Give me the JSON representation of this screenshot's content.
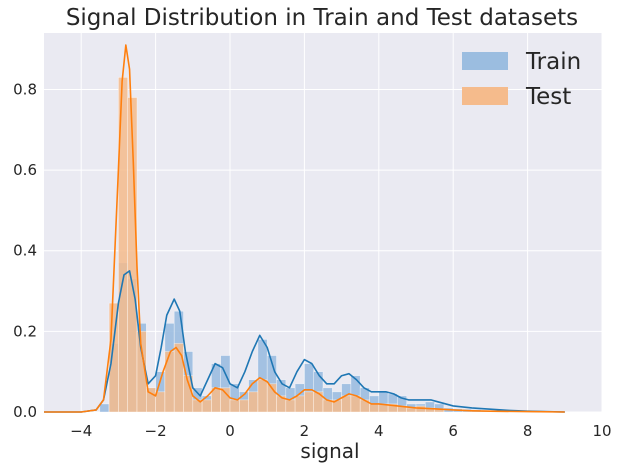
{
  "chart_data": {
    "type": "histogram-kde",
    "title": "Signal Distribution in Train and Test datasets",
    "xlabel": "signal",
    "ylabel": "",
    "xlim": [
      -5,
      10
    ],
    "ylim": [
      0,
      0.94
    ],
    "xticks": [
      -4,
      -2,
      0,
      2,
      4,
      6,
      8,
      10
    ],
    "xtick_labels": [
      "−4",
      "−2",
      "0",
      "2",
      "4",
      "6",
      "8",
      "10"
    ],
    "yticks": [
      0.0,
      0.2,
      0.4,
      0.6,
      0.8
    ],
    "ytick_labels": [
      "0.0",
      "0.2",
      "0.4",
      "0.6",
      "0.8"
    ],
    "grid": true,
    "background": "#eaeaf2",
    "legend_position": "top-right",
    "bin_width": 0.25,
    "series": [
      {
        "name": "Train",
        "bar_color": "#9bbde0",
        "bar_alpha": 0.9,
        "line_color": "#1f77b4",
        "bins": [
          {
            "start": -3.5,
            "value": 0.02
          },
          {
            "start": -3.25,
            "value": 0.17
          },
          {
            "start": -3.0,
            "value": 0.37
          },
          {
            "start": -2.75,
            "value": 0.33
          },
          {
            "start": -2.5,
            "value": 0.22
          },
          {
            "start": -2.25,
            "value": 0.06
          },
          {
            "start": -2.0,
            "value": 0.1
          },
          {
            "start": -1.75,
            "value": 0.22
          },
          {
            "start": -1.5,
            "value": 0.25
          },
          {
            "start": -1.25,
            "value": 0.15
          },
          {
            "start": -1.0,
            "value": 0.06
          },
          {
            "start": -0.75,
            "value": 0.04
          },
          {
            "start": -0.5,
            "value": 0.12
          },
          {
            "start": -0.25,
            "value": 0.14
          },
          {
            "start": 0.0,
            "value": 0.07
          },
          {
            "start": 0.25,
            "value": 0.05
          },
          {
            "start": 0.5,
            "value": 0.08
          },
          {
            "start": 0.75,
            "value": 0.18
          },
          {
            "start": 1.0,
            "value": 0.14
          },
          {
            "start": 1.25,
            "value": 0.08
          },
          {
            "start": 1.5,
            "value": 0.06
          },
          {
            "start": 1.75,
            "value": 0.07
          },
          {
            "start": 2.0,
            "value": 0.12
          },
          {
            "start": 2.25,
            "value": 0.1
          },
          {
            "start": 2.5,
            "value": 0.06
          },
          {
            "start": 2.75,
            "value": 0.05
          },
          {
            "start": 3.0,
            "value": 0.07
          },
          {
            "start": 3.25,
            "value": 0.09
          },
          {
            "start": 3.5,
            "value": 0.06
          },
          {
            "start": 3.75,
            "value": 0.04
          },
          {
            "start": 4.0,
            "value": 0.05
          },
          {
            "start": 4.25,
            "value": 0.045
          },
          {
            "start": 4.5,
            "value": 0.04
          },
          {
            "start": 4.75,
            "value": 0.02
          },
          {
            "start": 5.0,
            "value": 0.02
          },
          {
            "start": 5.25,
            "value": 0.025
          },
          {
            "start": 5.5,
            "value": 0.02
          },
          {
            "start": 5.75,
            "value": 0.01
          },
          {
            "start": 6.0,
            "value": 0.008
          },
          {
            "start": 6.25,
            "value": 0.007
          },
          {
            "start": 6.5,
            "value": 0.006
          },
          {
            "start": 6.75,
            "value": 0.004
          },
          {
            "start": 7.0,
            "value": 0.003
          },
          {
            "start": 7.25,
            "value": 0.002
          }
        ],
        "kde": {
          "x": [
            -5,
            -4,
            -3.6,
            -3.4,
            -3.2,
            -3.0,
            -2.85,
            -2.7,
            -2.55,
            -2.4,
            -2.2,
            -2.0,
            -1.85,
            -1.7,
            -1.5,
            -1.35,
            -1.2,
            -1.0,
            -0.8,
            -0.6,
            -0.4,
            -0.2,
            0.0,
            0.2,
            0.4,
            0.6,
            0.8,
            1.0,
            1.2,
            1.4,
            1.6,
            1.8,
            2.0,
            2.2,
            2.4,
            2.6,
            2.8,
            3.0,
            3.2,
            3.4,
            3.6,
            3.8,
            4.0,
            4.2,
            4.4,
            4.6,
            4.8,
            5.0,
            5.2,
            5.4,
            5.6,
            5.8,
            6.0,
            6.5,
            7.0,
            7.5,
            8.0,
            9.0
          ],
          "y": [
            0,
            0,
            0.005,
            0.03,
            0.12,
            0.27,
            0.34,
            0.35,
            0.28,
            0.16,
            0.07,
            0.09,
            0.16,
            0.24,
            0.28,
            0.25,
            0.15,
            0.06,
            0.04,
            0.08,
            0.12,
            0.11,
            0.07,
            0.06,
            0.1,
            0.15,
            0.19,
            0.16,
            0.1,
            0.07,
            0.06,
            0.1,
            0.13,
            0.12,
            0.09,
            0.07,
            0.07,
            0.09,
            0.095,
            0.08,
            0.06,
            0.05,
            0.05,
            0.05,
            0.045,
            0.035,
            0.03,
            0.03,
            0.03,
            0.03,
            0.025,
            0.02,
            0.015,
            0.01,
            0.007,
            0.004,
            0.002,
            0
          ]
        }
      },
      {
        "name": "Test",
        "bar_color": "#f5bb8c",
        "bar_alpha": 0.85,
        "line_color": "#ff7f0e",
        "bins": [
          {
            "start": -3.25,
            "value": 0.27
          },
          {
            "start": -3.0,
            "value": 0.83
          },
          {
            "start": -2.75,
            "value": 0.78
          },
          {
            "start": -2.5,
            "value": 0.2
          },
          {
            "start": -2.25,
            "value": 0.06
          },
          {
            "start": -2.0,
            "value": 0.05
          },
          {
            "start": -1.75,
            "value": 0.15
          },
          {
            "start": -1.5,
            "value": 0.17
          },
          {
            "start": -1.25,
            "value": 0.09
          },
          {
            "start": -1.0,
            "value": 0.03
          },
          {
            "start": -0.75,
            "value": 0.03
          },
          {
            "start": -0.5,
            "value": 0.06
          },
          {
            "start": -0.25,
            "value": 0.06
          },
          {
            "start": 0.0,
            "value": 0.03
          },
          {
            "start": 0.25,
            "value": 0.03
          },
          {
            "start": 0.5,
            "value": 0.05
          },
          {
            "start": 0.75,
            "value": 0.08
          },
          {
            "start": 1.0,
            "value": 0.07
          },
          {
            "start": 1.25,
            "value": 0.04
          },
          {
            "start": 1.5,
            "value": 0.03
          },
          {
            "start": 1.75,
            "value": 0.04
          },
          {
            "start": 2.0,
            "value": 0.05
          },
          {
            "start": 2.25,
            "value": 0.05
          },
          {
            "start": 2.5,
            "value": 0.03
          },
          {
            "start": 2.75,
            "value": 0.03
          },
          {
            "start": 3.0,
            "value": 0.04
          },
          {
            "start": 3.25,
            "value": 0.04
          },
          {
            "start": 3.5,
            "value": 0.03
          },
          {
            "start": 3.75,
            "value": 0.02
          },
          {
            "start": 4.0,
            "value": 0.02
          },
          {
            "start": 4.25,
            "value": 0.02
          },
          {
            "start": 4.5,
            "value": 0.015
          },
          {
            "start": 4.75,
            "value": 0.01
          },
          {
            "start": 5.0,
            "value": 0.015
          },
          {
            "start": 5.25,
            "value": 0.01
          },
          {
            "start": 5.5,
            "value": 0.008
          }
        ],
        "kde": {
          "x": [
            -5,
            -4,
            -3.6,
            -3.4,
            -3.2,
            -3.0,
            -2.9,
            -2.8,
            -2.7,
            -2.6,
            -2.5,
            -2.4,
            -2.2,
            -2.0,
            -1.8,
            -1.6,
            -1.45,
            -1.3,
            -1.15,
            -1.0,
            -0.8,
            -0.6,
            -0.4,
            -0.2,
            0.0,
            0.2,
            0.4,
            0.6,
            0.8,
            1.0,
            1.2,
            1.4,
            1.6,
            1.8,
            2.0,
            2.2,
            2.4,
            2.6,
            2.8,
            3.0,
            3.2,
            3.4,
            3.6,
            3.8,
            4.0,
            4.5,
            5.0,
            5.5,
            6.0,
            6.5,
            7.0,
            8.0,
            9.0
          ],
          "y": [
            0,
            0,
            0.005,
            0.03,
            0.18,
            0.6,
            0.82,
            0.91,
            0.85,
            0.62,
            0.36,
            0.17,
            0.05,
            0.04,
            0.1,
            0.15,
            0.16,
            0.14,
            0.08,
            0.04,
            0.025,
            0.04,
            0.06,
            0.055,
            0.035,
            0.03,
            0.045,
            0.07,
            0.085,
            0.075,
            0.05,
            0.035,
            0.03,
            0.04,
            0.055,
            0.055,
            0.045,
            0.03,
            0.025,
            0.035,
            0.045,
            0.04,
            0.03,
            0.02,
            0.02,
            0.015,
            0.01,
            0.008,
            0.005,
            0.003,
            0.002,
            0.001,
            0
          ]
        }
      }
    ]
  }
}
